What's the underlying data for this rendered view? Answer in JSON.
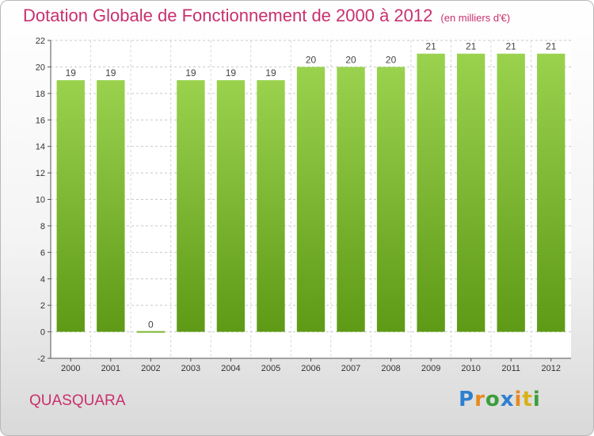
{
  "chart_data": {
    "type": "bar",
    "title": "Dotation Globale de Fonctionnement de 2000 à 2012",
    "unit_note": "(en milliers d'€)",
    "categories": [
      "2000",
      "2001",
      "2002",
      "2003",
      "2004",
      "2005",
      "2006",
      "2007",
      "2008",
      "2009",
      "2010",
      "2011",
      "2012"
    ],
    "values": [
      19,
      19,
      0,
      19,
      19,
      19,
      20,
      20,
      20,
      21,
      21,
      21,
      21
    ],
    "ylim": [
      -2,
      22
    ],
    "yticks": [
      -2,
      0,
      2,
      4,
      6,
      8,
      10,
      12,
      14,
      16,
      18,
      20,
      22
    ],
    "grid": true,
    "bar_color": "#7cc13a",
    "label_color": "#c8306e"
  },
  "commune": "QUASQUARA",
  "logo": {
    "letters": [
      "P",
      "r",
      "o",
      "x",
      "i",
      "t",
      "i"
    ]
  }
}
